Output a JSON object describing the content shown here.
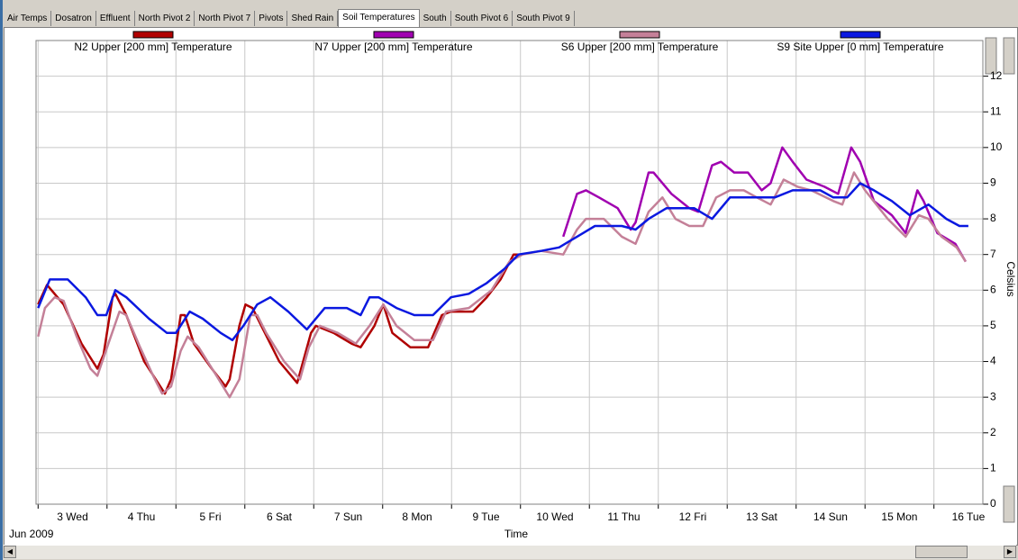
{
  "tabs": [
    "Air Temps",
    "Dosatron",
    "Effluent",
    "North Pivot 2",
    "North Pivot 7",
    "Pivots",
    "Shed Rain",
    "Soil Temperatures",
    "South",
    "South Pivot 6",
    "South Pivot 9"
  ],
  "active_tab": "Soil Temperatures",
  "chart_data": {
    "type": "line",
    "x_label": "Time",
    "x_sublabel": "Jun 2009",
    "y_label": "Celsius",
    "xlim": [
      -0.03,
      13.71
    ],
    "ylim": [
      0,
      13
    ],
    "xticks": [
      {
        "value": 0,
        "label": "3 Wed"
      },
      {
        "value": 1,
        "label": "4 Thu"
      },
      {
        "value": 2,
        "label": "5 Fri"
      },
      {
        "value": 3,
        "label": "6 Sat"
      },
      {
        "value": 4,
        "label": "7 Sun"
      },
      {
        "value": 5,
        "label": "8 Mon"
      },
      {
        "value": 6,
        "label": "9 Tue"
      },
      {
        "value": 7,
        "label": "10 Wed"
      },
      {
        "value": 8,
        "label": "11 Thu"
      },
      {
        "value": 9,
        "label": "12 Fri"
      },
      {
        "value": 10,
        "label": "13 Sat"
      },
      {
        "value": 11,
        "label": "14 Sun"
      },
      {
        "value": 12,
        "label": "15 Mon"
      },
      {
        "value": 13,
        "label": "16 Tue"
      }
    ],
    "yticks": [
      0,
      1,
      2,
      3,
      4,
      5,
      6,
      7,
      8,
      9,
      10,
      11,
      12
    ],
    "grid": true,
    "series": [
      {
        "name": "N2 Upper  [200 mm] Temperature",
        "color": "#b00000",
        "x": [
          0,
          0.13,
          0.37,
          0.63,
          0.86,
          0.95,
          1.08,
          1.12,
          1.28,
          1.54,
          1.74,
          1.84,
          1.93,
          2.07,
          2.13,
          2.26,
          2.52,
          2.72,
          2.78,
          2.92,
          3.01,
          3.11,
          3.24,
          3.5,
          3.76,
          3.96,
          4.03,
          4.29,
          4.55,
          4.68,
          4.88,
          5.01,
          5.14,
          5.4,
          5.66,
          5.86,
          5.99,
          6.31,
          6.51,
          6.71,
          6.9,
          7.03
        ],
        "values": [
          5.6,
          6.15,
          5.6,
          4.5,
          3.8,
          4.2,
          5.8,
          5.9,
          5.3,
          4.0,
          3.4,
          3.1,
          3.5,
          5.3,
          5.3,
          4.5,
          3.8,
          3.3,
          3.5,
          5.0,
          5.6,
          5.5,
          5.0,
          4.0,
          3.4,
          4.8,
          5.0,
          4.8,
          4.5,
          4.4,
          5.0,
          5.6,
          4.8,
          4.4,
          4.4,
          5.3,
          5.4,
          5.4,
          5.8,
          6.3,
          7.0,
          7.0
        ]
      },
      {
        "name": "N7 Upper  [200 mm] Temperature",
        "color": "#a000b0",
        "x": [
          7.62,
          7.82,
          7.95,
          8.14,
          8.41,
          8.6,
          8.67,
          8.86,
          8.93,
          9.19,
          9.45,
          9.58,
          9.78,
          9.91,
          10.1,
          10.3,
          10.5,
          10.63,
          10.8,
          10.95,
          11.15,
          11.41,
          11.61,
          11.8,
          11.93,
          12.13,
          12.39,
          12.59,
          12.76,
          12.85,
          13.05,
          13.31,
          13.46
        ],
        "values": [
          7.5,
          8.7,
          8.8,
          8.6,
          8.3,
          7.7,
          7.9,
          9.3,
          9.3,
          8.7,
          8.3,
          8.2,
          9.5,
          9.6,
          9.3,
          9.3,
          8.8,
          9.0,
          10.0,
          9.6,
          9.1,
          8.9,
          8.7,
          10.0,
          9.6,
          8.5,
          8.1,
          7.6,
          8.8,
          8.5,
          7.6,
          7.3,
          6.8
        ]
      },
      {
        "name": "S6 Upper  [200 mm] Temperature",
        "color": "#c48098",
        "x": [
          0,
          0.1,
          0.24,
          0.37,
          0.56,
          0.76,
          0.86,
          1.02,
          1.18,
          1.28,
          1.48,
          1.67,
          1.8,
          1.93,
          2.07,
          2.17,
          2.33,
          2.59,
          2.78,
          2.92,
          3.08,
          3.18,
          3.31,
          3.57,
          3.8,
          3.93,
          4.09,
          4.35,
          4.61,
          4.81,
          5.01,
          5.2,
          5.46,
          5.73,
          5.92,
          6.25,
          6.58,
          6.84,
          7.03,
          7.3,
          7.62,
          7.82,
          7.95,
          8.21,
          8.47,
          8.67,
          8.86,
          9.06,
          9.25,
          9.45,
          9.65,
          9.84,
          10.04,
          10.24,
          10.43,
          10.63,
          10.82,
          11.02,
          11.22,
          11.54,
          11.67,
          11.84,
          12.0,
          12.33,
          12.59,
          12.78,
          12.92,
          13.11,
          13.33,
          13.46
        ],
        "values": [
          4.7,
          5.5,
          5.8,
          5.7,
          4.7,
          3.8,
          3.6,
          4.5,
          5.4,
          5.3,
          4.4,
          3.6,
          3.1,
          3.3,
          4.3,
          4.7,
          4.4,
          3.6,
          3.0,
          3.5,
          5.3,
          5.3,
          4.8,
          4.0,
          3.5,
          4.4,
          5.0,
          4.8,
          4.5,
          5.0,
          5.6,
          5.0,
          4.6,
          4.6,
          5.4,
          5.5,
          6.0,
          6.8,
          7.0,
          7.1,
          7.0,
          7.7,
          8.0,
          8.0,
          7.5,
          7.3,
          8.2,
          8.6,
          8.0,
          7.8,
          7.8,
          8.6,
          8.8,
          8.8,
          8.6,
          8.4,
          9.1,
          8.9,
          8.8,
          8.5,
          8.4,
          9.3,
          8.8,
          8.0,
          7.5,
          8.1,
          8.0,
          7.5,
          7.2,
          6.8
        ]
      },
      {
        "name": "S9 Site Upper  [0 mm] Temperature",
        "color": "#0a18e0",
        "x": [
          0,
          0.17,
          0.43,
          0.69,
          0.86,
          0.99,
          1.12,
          1.28,
          1.61,
          1.87,
          2.0,
          2.2,
          2.39,
          2.65,
          2.82,
          2.98,
          3.18,
          3.37,
          3.63,
          3.9,
          4.16,
          4.48,
          4.68,
          4.81,
          4.94,
          5.2,
          5.46,
          5.73,
          5.99,
          6.25,
          6.51,
          6.77,
          6.97,
          7.3,
          7.56,
          7.82,
          8.08,
          8.47,
          8.67,
          8.86,
          9.12,
          9.52,
          9.78,
          10.04,
          10.69,
          10.95,
          11.35,
          11.54,
          11.74,
          11.93,
          12.13,
          12.39,
          12.65,
          12.92,
          13.18,
          13.37,
          13.5
        ],
        "values": [
          5.5,
          6.3,
          6.3,
          5.8,
          5.3,
          5.3,
          6.0,
          5.8,
          5.2,
          4.8,
          4.8,
          5.4,
          5.2,
          4.8,
          4.6,
          5.0,
          5.6,
          5.8,
          5.4,
          4.9,
          5.5,
          5.5,
          5.3,
          5.8,
          5.8,
          5.5,
          5.3,
          5.3,
          5.8,
          5.9,
          6.2,
          6.6,
          7.0,
          7.1,
          7.2,
          7.5,
          7.8,
          7.8,
          7.7,
          8.0,
          8.3,
          8.3,
          8.0,
          8.6,
          8.6,
          8.8,
          8.8,
          8.6,
          8.6,
          9.0,
          8.8,
          8.5,
          8.1,
          8.4,
          8.0,
          7.8,
          7.8
        ]
      }
    ]
  }
}
